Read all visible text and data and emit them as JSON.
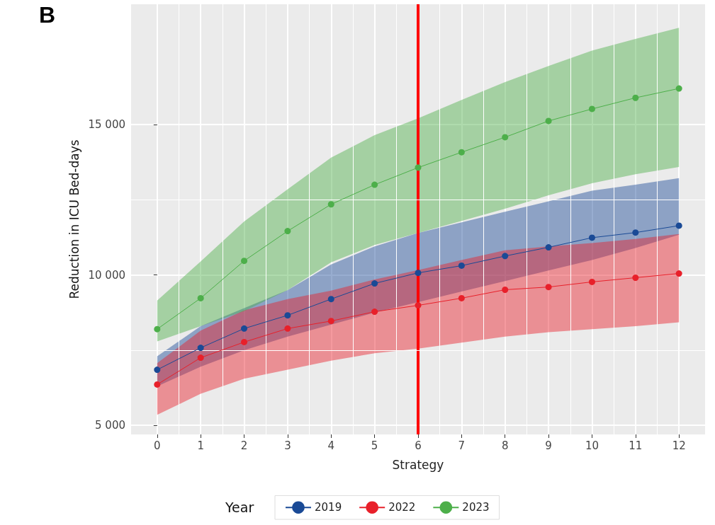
{
  "chart_data": {
    "type": "line",
    "title": "B",
    "xlabel": "Strategy",
    "ylabel": "Reduction in ICU Bed-days",
    "legend_title": "Year",
    "x": [
      0,
      1,
      2,
      3,
      4,
      5,
      6,
      7,
      8,
      9,
      10,
      11,
      12
    ],
    "series": [
      {
        "name": "2019",
        "color": "#1a4a96",
        "values": [
          6850,
          7580,
          8220,
          8660,
          9200,
          9720,
          10070,
          10310,
          10630,
          10920,
          11240,
          11410,
          11640
        ],
        "lower": [
          6300,
          6950,
          7500,
          7950,
          8350,
          8750,
          9100,
          9450,
          9800,
          10150,
          10500,
          10900,
          11340
        ],
        "upper": [
          7300,
          8300,
          8900,
          9500,
          10350,
          10950,
          11400,
          11750,
          12100,
          12450,
          12800,
          13000,
          13220
        ]
      },
      {
        "name": "2022",
        "color": "#e8202a",
        "values": [
          6360,
          7250,
          7770,
          8220,
          8470,
          8780,
          8990,
          9230,
          9510,
          9600,
          9770,
          9910,
          10050
        ],
        "lower": [
          5350,
          6050,
          6550,
          6850,
          7150,
          7400,
          7550,
          7750,
          7950,
          8100,
          8200,
          8300,
          8430
        ],
        "upper": [
          7070,
          8150,
          8830,
          9200,
          9480,
          9850,
          10160,
          10500,
          10820,
          10950,
          11060,
          11200,
          11360
        ]
      },
      {
        "name": "2023",
        "color": "#4daf4a",
        "values": [
          8200,
          9230,
          10470,
          11460,
          12350,
          13000,
          13570,
          14080,
          14580,
          15120,
          15520,
          15890,
          16200
        ],
        "lower": [
          7790,
          8300,
          8800,
          9500,
          10420,
          11000,
          11400,
          11800,
          12200,
          12650,
          13050,
          13350,
          13590
        ],
        "upper": [
          9150,
          10450,
          11780,
          12850,
          13900,
          14650,
          15210,
          15820,
          16410,
          16950,
          17460,
          17850,
          18220
        ]
      }
    ],
    "xlim": [
      -0.6,
      12.6
    ],
    "xticks": [
      0,
      1,
      2,
      3,
      4,
      5,
      6,
      7,
      8,
      9,
      10,
      11,
      12
    ],
    "ylim": [
      4700,
      19000
    ],
    "yticks": [
      {
        "value": 5000,
        "label": "5 000"
      },
      {
        "value": 10000,
        "label": "10 000"
      },
      {
        "value": 15000,
        "label": "15 000"
      }
    ],
    "ref_lines": [
      {
        "axis": "x",
        "value": 6,
        "color": "#ff0000"
      }
    ],
    "grid": true,
    "legend": "bottom",
    "marker": "circle",
    "line_style": "solid"
  }
}
